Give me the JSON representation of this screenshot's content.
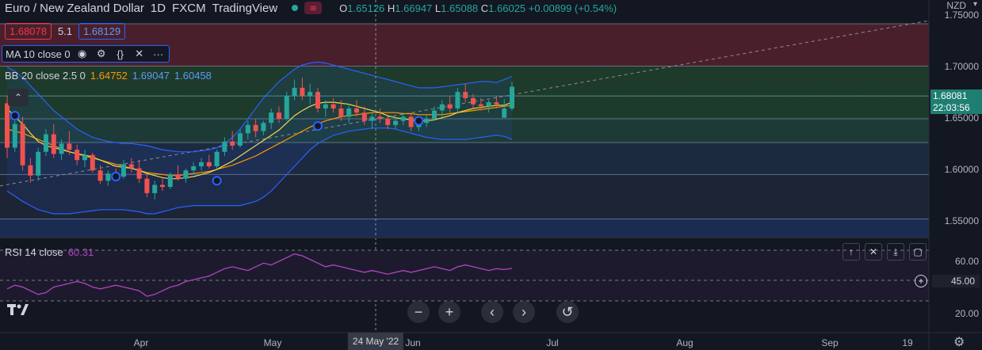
{
  "header": {
    "title": "Euro / New Zealand Dollar",
    "interval": "1D",
    "exchange": "FXCM",
    "platform": "TradingView",
    "ohlc": {
      "o_label": "O",
      "o": "1.65126",
      "h_label": "H",
      "h": "1.66947",
      "l_label": "L",
      "l": "1.65088",
      "c_label": "C",
      "c": "1.66025",
      "change": "+0.00899 (+0.54%)"
    }
  },
  "quote": {
    "sell": "1.68078",
    "spread": "5.1",
    "buy": "1.68129"
  },
  "indicators": {
    "ma": {
      "label": "MA 10 close 0"
    },
    "bb": {
      "label": "BB 20 close 2.5 0",
      "v1": "1.64752",
      "v2": "1.69047",
      "v3": "1.60458"
    },
    "rsi": {
      "label": "RSI 14 close",
      "value": "60.31"
    }
  },
  "currency": "NZD",
  "price_axis": {
    "ticks": [
      "1.75000",
      "1.70000",
      "1.65000",
      "1.60000",
      "1.55000"
    ],
    "current_price": "1.68081",
    "countdown": "22:03:56"
  },
  "rsi_axis": {
    "ticks": [
      "60.00",
      "45.00",
      "20.00"
    ]
  },
  "time_axis": {
    "labels": [
      "Apr",
      "May",
      "Jun",
      "Jul",
      "Aug",
      "Sep",
      "19"
    ],
    "crosshair": "24 May '22"
  },
  "colors": {
    "bg": "#131722",
    "up": "#26a69a",
    "down": "#ef5350",
    "ma": "#f0d94a",
    "bb_mid": "#ff9800",
    "bb_band": "#2962ff",
    "rsi": "#ab47bc"
  },
  "chart_data": {
    "type": "candlestick",
    "title": "Euro / New Zealand Dollar",
    "ylim": [
      1.535,
      1.765
    ],
    "x_months": [
      "Apr",
      "May",
      "Jun",
      "Jul",
      "Aug",
      "Sep"
    ],
    "candles": [
      [
        1.665,
        1.672,
        1.612,
        1.622
      ],
      [
        1.622,
        1.648,
        1.618,
        1.645
      ],
      [
        1.645,
        1.652,
        1.6,
        1.605
      ],
      [
        1.605,
        1.612,
        1.588,
        1.595
      ],
      [
        1.595,
        1.622,
        1.59,
        1.618
      ],
      [
        1.618,
        1.64,
        1.614,
        1.635
      ],
      [
        1.635,
        1.645,
        1.612,
        1.616
      ],
      [
        1.616,
        1.63,
        1.61,
        1.626
      ],
      [
        1.626,
        1.638,
        1.615,
        1.62
      ],
      [
        1.62,
        1.625,
        1.605,
        1.61
      ],
      [
        1.61,
        1.62,
        1.603,
        1.615
      ],
      [
        1.615,
        1.617,
        1.598,
        1.6
      ],
      [
        1.6,
        1.605,
        1.587,
        1.59
      ],
      [
        1.59,
        1.6,
        1.585,
        1.597
      ],
      [
        1.597,
        1.602,
        1.59,
        1.594
      ],
      [
        1.594,
        1.61,
        1.592,
        1.606
      ],
      [
        1.606,
        1.612,
        1.598,
        1.602
      ],
      [
        1.602,
        1.61,
        1.588,
        1.592
      ],
      [
        1.592,
        1.596,
        1.574,
        1.578
      ],
      [
        1.578,
        1.59,
        1.572,
        1.586
      ],
      [
        1.586,
        1.592,
        1.58,
        1.584
      ],
      [
        1.584,
        1.598,
        1.582,
        1.596
      ],
      [
        1.596,
        1.605,
        1.59,
        1.592
      ],
      [
        1.592,
        1.602,
        1.588,
        1.6
      ],
      [
        1.6,
        1.608,
        1.596,
        1.604
      ],
      [
        1.604,
        1.612,
        1.6,
        1.608
      ],
      [
        1.608,
        1.615,
        1.602,
        1.604
      ],
      [
        1.604,
        1.62,
        1.602,
        1.618
      ],
      [
        1.618,
        1.632,
        1.614,
        1.628
      ],
      [
        1.628,
        1.638,
        1.62,
        1.624
      ],
      [
        1.624,
        1.64,
        1.622,
        1.636
      ],
      [
        1.636,
        1.648,
        1.63,
        1.644
      ],
      [
        1.644,
        1.65,
        1.632,
        1.638
      ],
      [
        1.638,
        1.648,
        1.634,
        1.646
      ],
      [
        1.646,
        1.66,
        1.64,
        1.656
      ],
      [
        1.656,
        1.662,
        1.646,
        1.65
      ],
      [
        1.65,
        1.676,
        1.648,
        1.672
      ],
      [
        1.672,
        1.688,
        1.668,
        1.68
      ],
      [
        1.68,
        1.69,
        1.668,
        1.672
      ],
      [
        1.672,
        1.684,
        1.664,
        1.676
      ],
      [
        1.676,
        1.68,
        1.656,
        1.66
      ],
      [
        1.66,
        1.668,
        1.652,
        1.664
      ],
      [
        1.664,
        1.67,
        1.656,
        1.66
      ],
      [
        1.66,
        1.668,
        1.648,
        1.652
      ],
      [
        1.652,
        1.664,
        1.646,
        1.66
      ],
      [
        1.66,
        1.668,
        1.652,
        1.656
      ],
      [
        1.656,
        1.662,
        1.644,
        1.648
      ],
      [
        1.648,
        1.656,
        1.64,
        1.652
      ],
      [
        1.652,
        1.66,
        1.646,
        1.65
      ],
      [
        1.65,
        1.654,
        1.64,
        1.644
      ],
      [
        1.644,
        1.652,
        1.64,
        1.648
      ],
      [
        1.648,
        1.656,
        1.644,
        1.652
      ],
      [
        1.652,
        1.656,
        1.638,
        1.642
      ],
      [
        1.642,
        1.65,
        1.638,
        1.646
      ],
      [
        1.646,
        1.654,
        1.642,
        1.65
      ],
      [
        1.65,
        1.662,
        1.648,
        1.658
      ],
      [
        1.658,
        1.668,
        1.652,
        1.664
      ],
      [
        1.664,
        1.672,
        1.656,
        1.66
      ],
      [
        1.66,
        1.68,
        1.656,
        1.676
      ],
      [
        1.676,
        1.684,
        1.666,
        1.67
      ],
      [
        1.67,
        1.674,
        1.66,
        1.664
      ],
      [
        1.664,
        1.67,
        1.658,
        1.662
      ],
      [
        1.662,
        1.668,
        1.656,
        1.666
      ],
      [
        1.666,
        1.672,
        1.66,
        1.664
      ],
      [
        1.651,
        1.669,
        1.651,
        1.66
      ],
      [
        1.66,
        1.686,
        1.658,
        1.681
      ]
    ],
    "ma10": [
      1.66,
      1.652,
      1.645,
      1.636,
      1.628,
      1.624,
      1.622,
      1.62,
      1.618,
      1.616,
      1.615,
      1.613,
      1.61,
      1.607,
      1.604,
      1.603,
      1.602,
      1.6,
      1.597,
      1.595,
      1.593,
      1.592,
      1.592,
      1.593,
      1.594,
      1.596,
      1.598,
      1.601,
      1.605,
      1.609,
      1.614,
      1.619,
      1.624,
      1.629,
      1.634,
      1.639,
      1.646,
      1.653,
      1.658,
      1.662,
      1.665,
      1.666,
      1.666,
      1.665,
      1.664,
      1.662,
      1.66,
      1.658,
      1.656,
      1.653,
      1.651,
      1.65,
      1.649,
      1.648,
      1.648,
      1.649,
      1.651,
      1.653,
      1.656,
      1.658,
      1.66,
      1.661,
      1.662,
      1.663,
      1.663,
      1.666
    ],
    "bb_mid": [
      1.64,
      1.638,
      1.636,
      1.633,
      1.63,
      1.627,
      1.624,
      1.621,
      1.618,
      1.616,
      1.614,
      1.612,
      1.61,
      1.608,
      1.606,
      1.604,
      1.602,
      1.6,
      1.598,
      1.597,
      1.596,
      1.595,
      1.595,
      1.596,
      1.597,
      1.598,
      1.599,
      1.601,
      1.603,
      1.605,
      1.608,
      1.611,
      1.614,
      1.618,
      1.622,
      1.626,
      1.63,
      1.634,
      1.638,
      1.642,
      1.645,
      1.648,
      1.65,
      1.652,
      1.653,
      1.654,
      1.655,
      1.656,
      1.656,
      1.656,
      1.656,
      1.655,
      1.655,
      1.654,
      1.654,
      1.654,
      1.654,
      1.655,
      1.656,
      1.657,
      1.658,
      1.659,
      1.66,
      1.661,
      1.662,
      1.663
    ],
    "bb_upper": [
      1.7,
      1.696,
      1.69,
      1.682,
      1.674,
      1.666,
      1.658,
      1.652,
      1.646,
      1.64,
      1.636,
      1.632,
      1.63,
      1.628,
      1.627,
      1.626,
      1.626,
      1.625,
      1.624,
      1.622,
      1.62,
      1.619,
      1.618,
      1.618,
      1.618,
      1.619,
      1.62,
      1.622,
      1.626,
      1.632,
      1.64,
      1.65,
      1.66,
      1.67,
      1.678,
      1.686,
      1.692,
      1.698,
      1.702,
      1.704,
      1.705,
      1.704,
      1.702,
      1.7,
      1.698,
      1.696,
      1.694,
      1.692,
      1.69,
      1.688,
      1.686,
      1.684,
      1.682,
      1.68,
      1.68,
      1.68,
      1.681,
      1.682,
      1.683,
      1.684,
      1.685,
      1.686,
      1.686,
      1.685,
      1.688,
      1.691
    ],
    "bb_lower": [
      1.58,
      1.575,
      1.57,
      1.566,
      1.562,
      1.56,
      1.558,
      1.558,
      1.558,
      1.559,
      1.56,
      1.561,
      1.562,
      1.562,
      1.562,
      1.562,
      1.561,
      1.56,
      1.558,
      1.558,
      1.56,
      1.562,
      1.564,
      1.565,
      1.566,
      1.566,
      1.566,
      1.566,
      1.566,
      1.566,
      1.566,
      1.568,
      1.57,
      1.574,
      1.58,
      1.588,
      1.596,
      1.604,
      1.612,
      1.62,
      1.626,
      1.63,
      1.634,
      1.636,
      1.638,
      1.639,
      1.64,
      1.641,
      1.641,
      1.641,
      1.64,
      1.638,
      1.636,
      1.634,
      1.632,
      1.631,
      1.63,
      1.63,
      1.63,
      1.63,
      1.631,
      1.632,
      1.633,
      1.634,
      1.633,
      1.63
    ],
    "bb_fill_color": "#2962ff",
    "h_levels": [
      1.742,
      1.701,
      1.672,
      1.65,
      1.627,
      1.596,
      1.553
    ],
    "zones": [
      {
        "from": 1.701,
        "to": 1.742,
        "color": "#4a1f2c"
      },
      {
        "from": 1.65,
        "to": 1.701,
        "color": "#1e3a2a"
      },
      {
        "from": 1.627,
        "to": 1.65,
        "color": "#1d3a36"
      },
      {
        "from": 1.596,
        "to": 1.627,
        "color": "#1c2a40"
      },
      {
        "from": 1.553,
        "to": 1.596,
        "color": "#1c2436"
      },
      {
        "from": 1.535,
        "to": 1.553,
        "color": "#1a2c52"
      }
    ],
    "rsi": [
      38,
      42,
      40,
      36,
      32,
      34,
      40,
      42,
      44,
      46,
      44,
      40,
      38,
      40,
      42,
      40,
      38,
      36,
      30,
      32,
      36,
      40,
      42,
      46,
      48,
      50,
      52,
      56,
      60,
      62,
      60,
      58,
      62,
      66,
      64,
      68,
      72,
      76,
      74,
      70,
      66,
      62,
      64,
      62,
      60,
      58,
      56,
      58,
      56,
      54,
      56,
      58,
      56,
      58,
      60,
      62,
      60,
      58,
      62,
      64,
      62,
      60,
      58,
      60,
      59,
      60.31
    ],
    "rsi_ylim": [
      15,
      80
    ]
  }
}
